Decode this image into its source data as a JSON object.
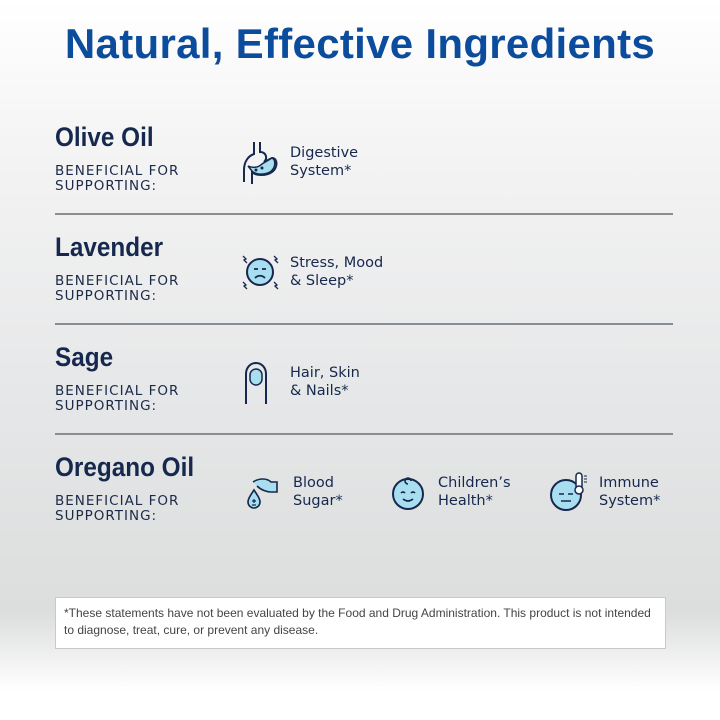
{
  "title": "Natural, Effective Ingredients",
  "colors": {
    "title": "#0b4d9c",
    "text": "#16284d",
    "icon_fill": "#a8def0"
  },
  "rows": [
    {
      "name": "Olive Oil",
      "sub": "BENEFICIAL FOR SUPPORTING:",
      "benefits": [
        {
          "icon": "stomach-icon",
          "line1": "Digestive",
          "line2": "System*"
        }
      ]
    },
    {
      "name": "Lavender",
      "sub": "BENEFICIAL FOR SUPPORTING:",
      "benefits": [
        {
          "icon": "stressed-face-icon",
          "line1": "Stress, Mood",
          "line2": "& Sleep*"
        }
      ]
    },
    {
      "name": "Sage",
      "sub": "BENEFICIAL FOR SUPPORTING:",
      "benefits": [
        {
          "icon": "fingernail-icon",
          "line1": "Hair, Skin",
          "line2": "& Nails*"
        }
      ]
    },
    {
      "name": "Oregano Oil",
      "sub": "BENEFICIAL FOR SUPPORTING:",
      "benefits": [
        {
          "icon": "blood-drop-hand-icon",
          "line1": "Blood",
          "line2": "Sugar*"
        },
        {
          "icon": "baby-face-icon",
          "line1": "Children’s",
          "line2": "Health*"
        },
        {
          "icon": "thermometer-face-icon",
          "line1": "Immune",
          "line2": "System*"
        }
      ]
    }
  ],
  "disclaimer": "*These statements have not been evaluated by the Food and Drug Administration. This product is not intended to diagnose, treat, cure, or prevent any disease."
}
